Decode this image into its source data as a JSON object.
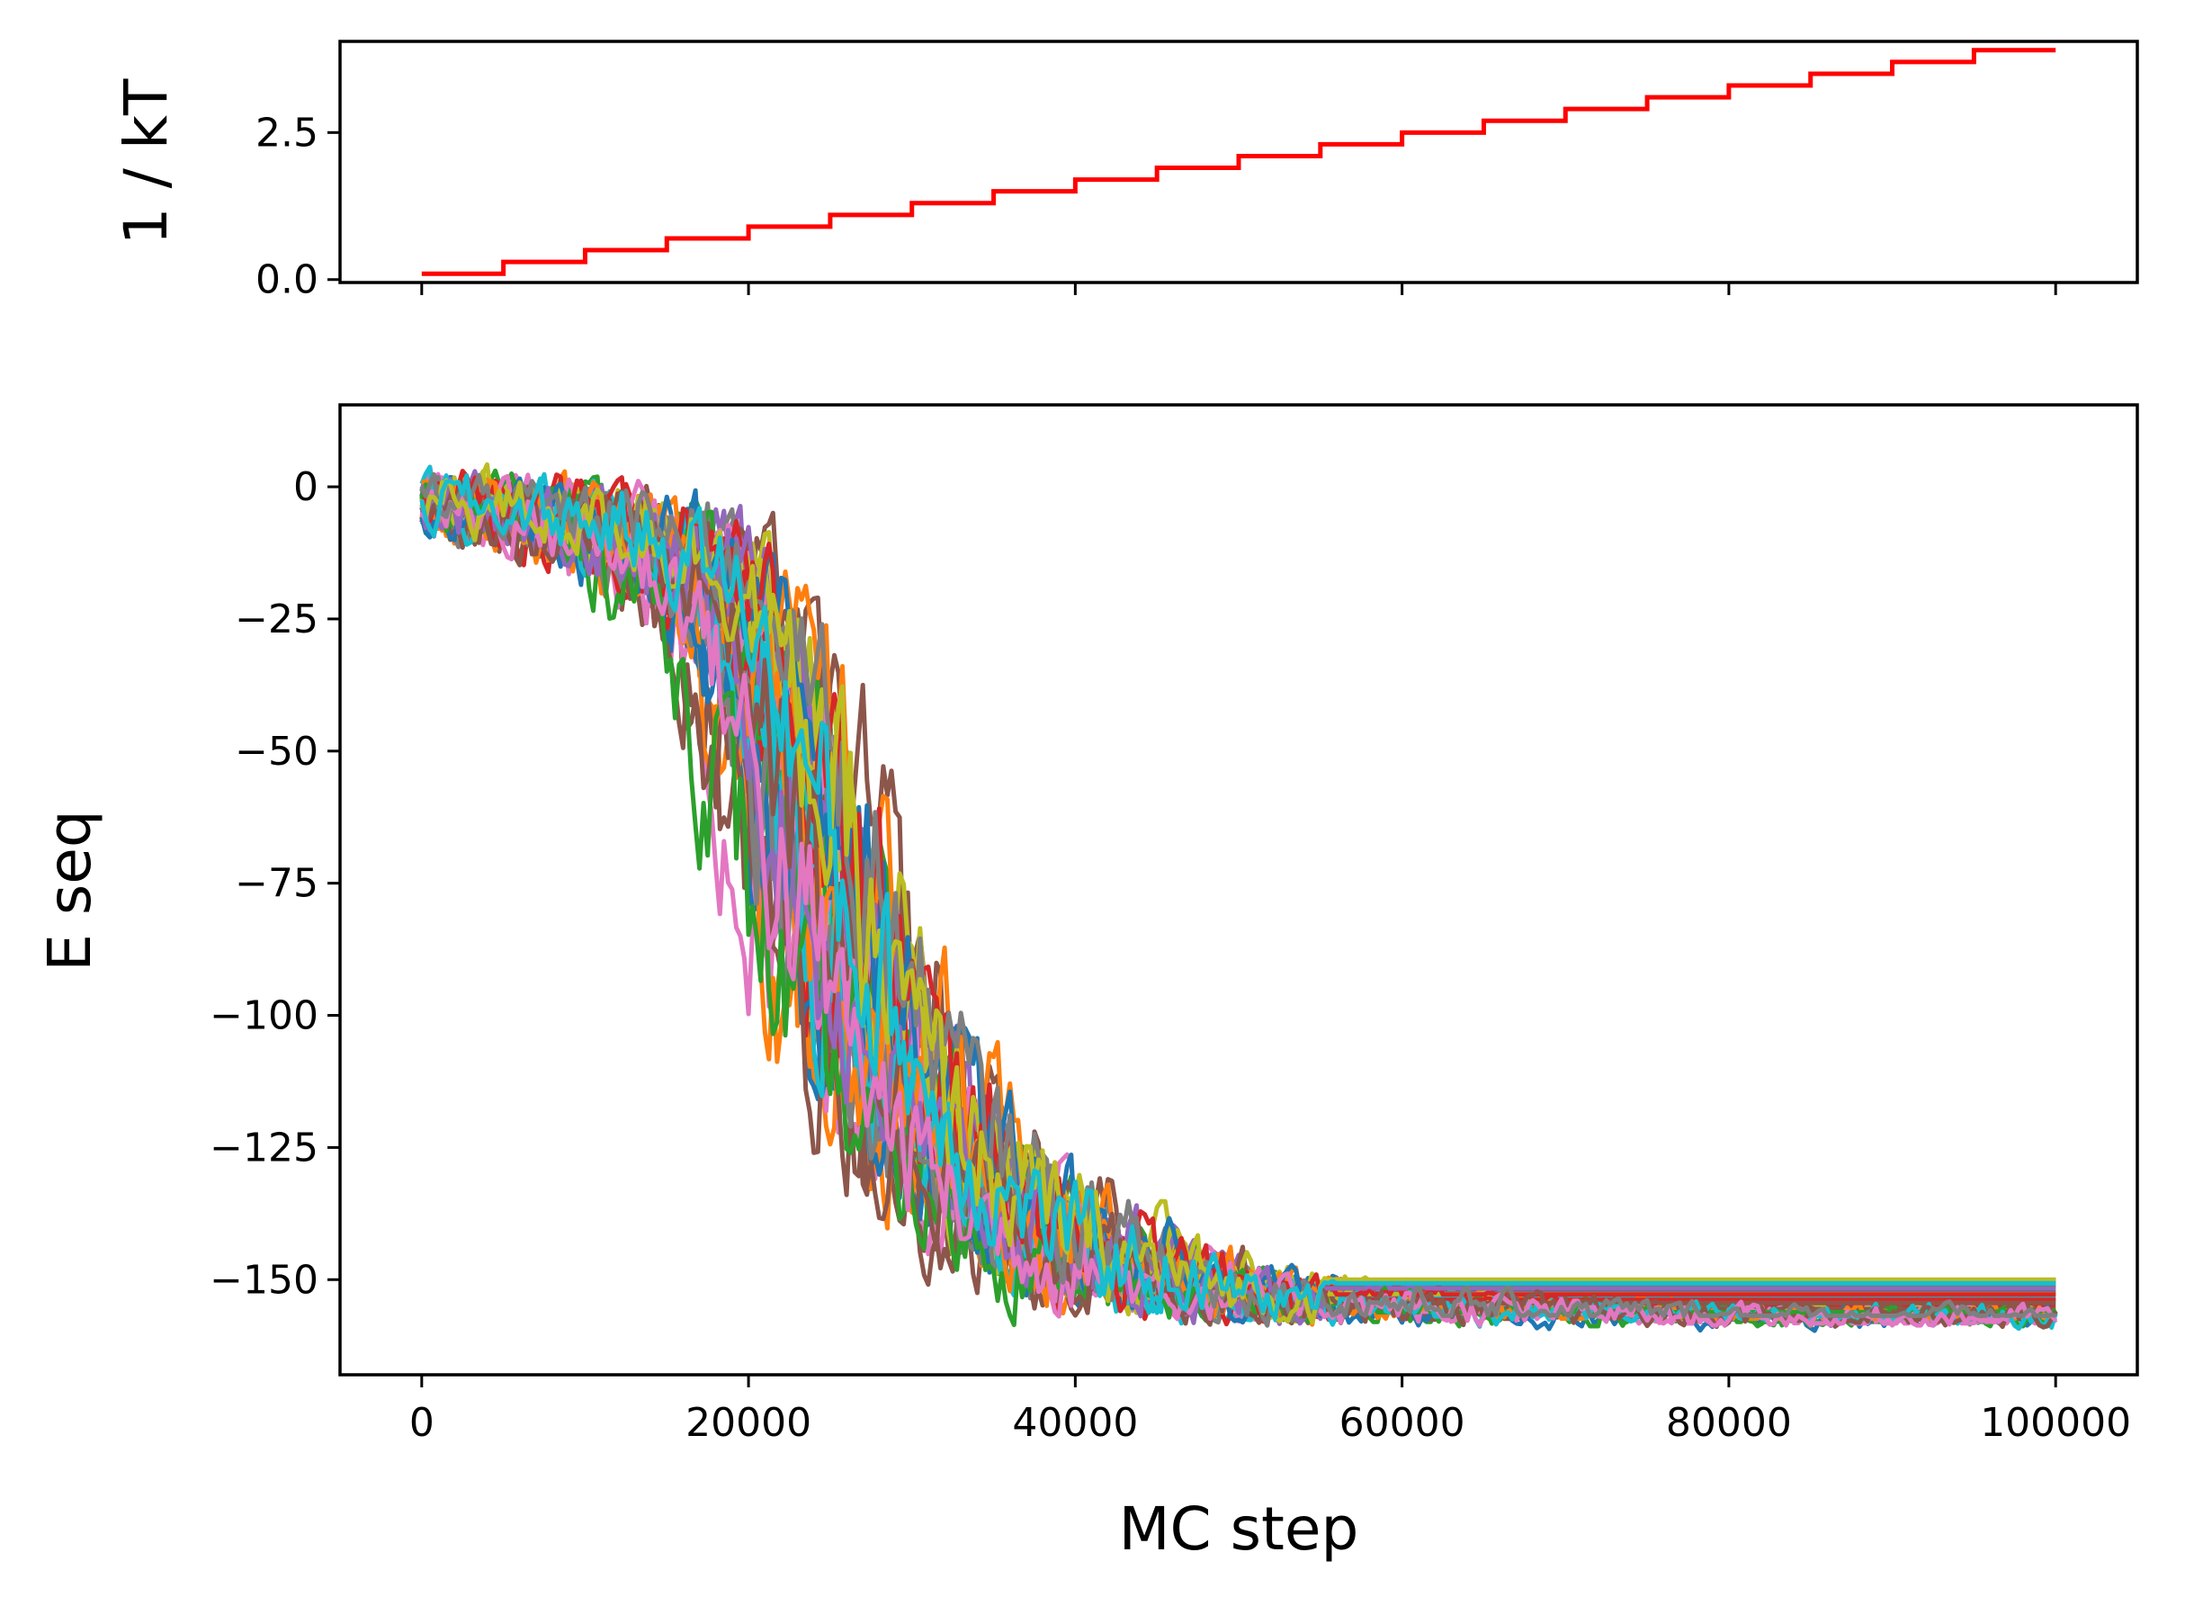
{
  "chart_data": [
    {
      "type": "line",
      "name": "temperature-schedule",
      "ylabel": "1 / kT",
      "xlabel": "",
      "xlim": [
        -5000,
        105000
      ],
      "ylim": [
        -0.05,
        4.05
      ],
      "xticks": [
        0,
        20000,
        40000,
        60000,
        80000,
        100000
      ],
      "show_xtick_labels": false,
      "yticks": [
        0.0,
        2.5
      ],
      "ytick_labels": [
        "0.0",
        "2.5"
      ],
      "grid": false,
      "color": "#ff0000",
      "steps": {
        "x": [
          0,
          5000,
          10000,
          15000,
          20000,
          25000,
          30000,
          35000,
          40000,
          45000,
          50000,
          55000,
          60000,
          65000,
          70000,
          75000,
          80000,
          85000,
          90000,
          95000,
          100000
        ],
        "y": [
          0.1,
          0.3,
          0.5,
          0.7,
          0.9,
          1.1,
          1.3,
          1.5,
          1.7,
          1.9,
          2.1,
          2.3,
          2.5,
          2.7,
          2.9,
          3.1,
          3.3,
          3.5,
          3.7,
          3.9,
          3.9
        ]
      }
    },
    {
      "type": "line",
      "name": "energy-trajectories",
      "ylabel": "E seq",
      "xlabel": "MC step",
      "xlim": [
        -5000,
        105000
      ],
      "ylim": [
        -168,
        15.5
      ],
      "xticks": [
        0,
        20000,
        40000,
        60000,
        80000,
        100000
      ],
      "xtick_labels": [
        "0",
        "20000",
        "40000",
        "60000",
        "80000",
        "100000"
      ],
      "yticks": [
        0,
        -25,
        -50,
        -75,
        -100,
        -125,
        -150
      ],
      "ytick_labels": [
        "0",
        "−25",
        "−50",
        "−75",
        "−100",
        "−125",
        "−150"
      ],
      "grid": false,
      "series_count": 40,
      "series_colors": [
        "#1f77b4",
        "#ff7f0e",
        "#2ca02c",
        "#d62728",
        "#9467bd",
        "#8c564b",
        "#e377c2",
        "#7f7f7f",
        "#bcbd22",
        "#17becf"
      ],
      "envelope": {
        "x": [
          0,
          5000,
          10000,
          15000,
          18000,
          20000,
          22000,
          24000,
          26000,
          28000,
          30000,
          33000,
          36000,
          40000,
          45000,
          50000,
          60000,
          70000,
          80000,
          90000,
          100000
        ],
        "median": [
          -3,
          -5,
          -7,
          -13,
          -20,
          -35,
          -55,
          -75,
          -92,
          -106,
          -118,
          -130,
          -138,
          -145,
          -150,
          -153,
          -155,
          -156,
          -157,
          -157,
          -157
        ],
        "upper": [
          6,
          5,
          5,
          4,
          3,
          2,
          0,
          -12,
          -40,
          -70,
          -85,
          -100,
          -110,
          -118,
          -130,
          -140,
          -145,
          -148,
          -150,
          -150,
          -150
        ],
        "lower": [
          -20,
          -22,
          -30,
          -40,
          -45,
          -60,
          -100,
          -125,
          -140,
          -150,
          -155,
          -158,
          -159,
          -160,
          -160,
          -160,
          -160,
          -160,
          -160,
          -160,
          -160
        ]
      }
    }
  ]
}
